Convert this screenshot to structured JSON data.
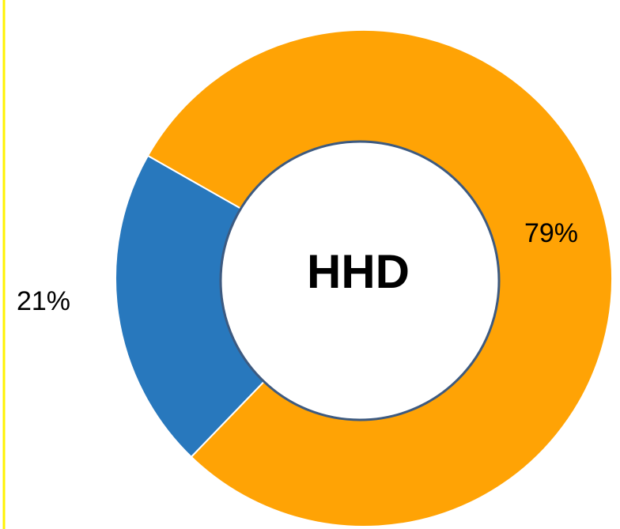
{
  "chart_data": {
    "type": "donut",
    "center_label": "HHD",
    "categories": [
      null,
      null
    ],
    "series": [
      {
        "name": null,
        "values": [
          21,
          79
        ],
        "value_labels": [
          "21%",
          "79%"
        ],
        "colors": [
          "#2878bd",
          "#ffa305"
        ]
      }
    ]
  }
}
